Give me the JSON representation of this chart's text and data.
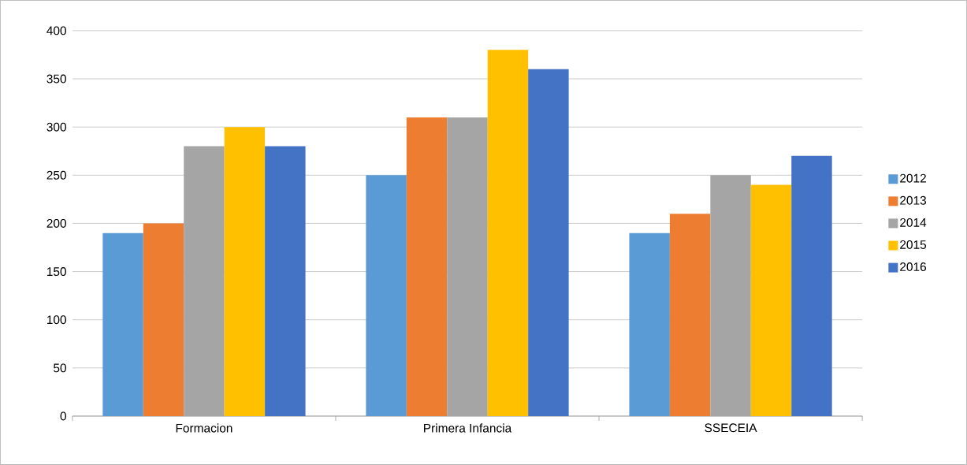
{
  "chart_data": {
    "type": "bar",
    "categories": [
      "Formacion",
      "Primera Infancia",
      "SSECEIA"
    ],
    "series": [
      {
        "name": "2012",
        "color": "#5b9bd5",
        "values": [
          190,
          250,
          190
        ]
      },
      {
        "name": "2013",
        "color": "#ed7d31",
        "values": [
          200,
          310,
          210
        ]
      },
      {
        "name": "2014",
        "color": "#a5a5a5",
        "values": [
          280,
          310,
          250
        ]
      },
      {
        "name": "2015",
        "color": "#ffc000",
        "values": [
          300,
          380,
          240
        ]
      },
      {
        "name": "2016",
        "color": "#4472c4",
        "values": [
          280,
          360,
          270
        ]
      }
    ],
    "ylim": [
      0,
      400
    ],
    "yticks": [
      0,
      50,
      100,
      150,
      200,
      250,
      300,
      350,
      400
    ],
    "grid": "y",
    "legend": "right"
  }
}
